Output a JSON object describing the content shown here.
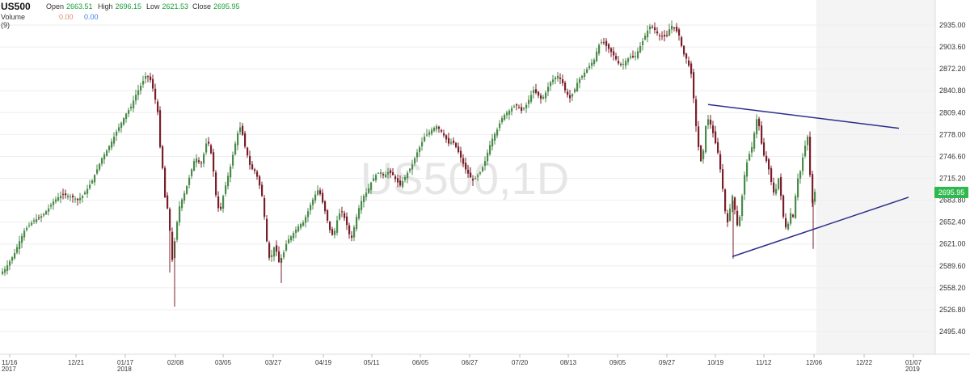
{
  "header": {
    "symbol": "US500",
    "open_label": "Open",
    "open_value": "2663.51",
    "high_label": "High",
    "high_value": "2696.15",
    "low_label": "Low",
    "low_value": "2621.53",
    "close_label": "Close",
    "close_value": "2695.95",
    "volume_label": "Volume (9)",
    "volume_value_1": "0.00",
    "volume_value_2": "0.00"
  },
  "colors": {
    "up": "#4a8a4a",
    "down": "#7a1f2a",
    "trendline": "#2c2e8c",
    "price_badge": "#2fb84e",
    "volume_value_1": "#e08a6a",
    "volume_value_2": "#3d7ee8",
    "future_area": "#f4f4f4",
    "grid": "#eeeeee"
  },
  "watermark": "US500,1D",
  "price_badge": "2695.95",
  "chart_data": {
    "type": "candlestick",
    "title": "US500",
    "timeframe": "1D",
    "x_tick_labels": [
      {
        "label": "11/16",
        "year": "2017"
      },
      {
        "label": "12/21",
        "year": ""
      },
      {
        "label": "01/17",
        "year": "2018"
      },
      {
        "label": "02/08",
        "year": ""
      },
      {
        "label": "03/05",
        "year": ""
      },
      {
        "label": "03/27",
        "year": ""
      },
      {
        "label": "04/19",
        "year": ""
      },
      {
        "label": "05/11",
        "year": ""
      },
      {
        "label": "06/05",
        "year": ""
      },
      {
        "label": "06/27",
        "year": ""
      },
      {
        "label": "07/20",
        "year": ""
      },
      {
        "label": "08/13",
        "year": ""
      },
      {
        "label": "09/05",
        "year": ""
      },
      {
        "label": "09/27",
        "year": ""
      },
      {
        "label": "10/19",
        "year": ""
      },
      {
        "label": "11/12",
        "year": ""
      },
      {
        "label": "12/06",
        "year": ""
      },
      {
        "label": "12/22",
        "year": ""
      },
      {
        "label": "01/07",
        "year": "2019"
      }
    ],
    "y_tick_labels": [
      "2935.00",
      "2903.60",
      "2872.20",
      "2840.80",
      "2809.40",
      "2778.00",
      "2746.60",
      "2715.20",
      "2683.80",
      "2652.40",
      "2621.00",
      "2589.60",
      "2558.20",
      "2526.80",
      "2495.40"
    ],
    "y_range": [
      2470,
      2960
    ],
    "last_close": 2695.95,
    "close_path": [
      [
        0,
        2578
      ],
      [
        6,
        2585
      ],
      [
        12,
        2596
      ],
      [
        18,
        2608
      ],
      [
        24,
        2625
      ],
      [
        30,
        2640
      ],
      [
        36,
        2648
      ],
      [
        42,
        2655
      ],
      [
        48,
        2658
      ],
      [
        54,
        2664
      ],
      [
        60,
        2672
      ],
      [
        66,
        2682
      ],
      [
        72,
        2688
      ],
      [
        78,
        2692
      ],
      [
        84,
        2690
      ],
      [
        90,
        2688
      ],
      [
        96,
        2684
      ],
      [
        102,
        2690
      ],
      [
        108,
        2700
      ],
      [
        114,
        2712
      ],
      [
        120,
        2728
      ],
      [
        126,
        2744
      ],
      [
        132,
        2755
      ],
      [
        138,
        2768
      ],
      [
        144,
        2782
      ],
      [
        150,
        2795
      ],
      [
        156,
        2808
      ],
      [
        162,
        2818
      ],
      [
        168,
        2835
      ],
      [
        174,
        2848
      ],
      [
        180,
        2862
      ],
      [
        185,
        2860
      ],
      [
        190,
        2840
      ],
      [
        195,
        2810
      ],
      [
        198,
        2760
      ],
      [
        201,
        2730
      ],
      [
        204,
        2688
      ],
      [
        207,
        2672
      ],
      [
        210,
        2640
      ],
      [
        212,
        2590
      ],
      [
        215,
        2615
      ],
      [
        218,
        2645
      ],
      [
        222,
        2675
      ],
      [
        226,
        2688
      ],
      [
        230,
        2700
      ],
      [
        235,
        2720
      ],
      [
        240,
        2740
      ],
      [
        244,
        2745
      ],
      [
        248,
        2732
      ],
      [
        252,
        2750
      ],
      [
        256,
        2770
      ],
      [
        260,
        2760
      ],
      [
        264,
        2725
      ],
      [
        268,
        2680
      ],
      [
        272,
        2665
      ],
      [
        276,
        2690
      ],
      [
        280,
        2710
      ],
      [
        285,
        2732
      ],
      [
        290,
        2760
      ],
      [
        295,
        2785
      ],
      [
        298,
        2790
      ],
      [
        302,
        2765
      ],
      [
        306,
        2748
      ],
      [
        310,
        2730
      ],
      [
        316,
        2725
      ],
      [
        320,
        2710
      ],
      [
        324,
        2690
      ],
      [
        328,
        2650
      ],
      [
        332,
        2600
      ],
      [
        336,
        2605
      ],
      [
        340,
        2620
      ],
      [
        345,
        2595
      ],
      [
        350,
        2605
      ],
      [
        355,
        2625
      ],
      [
        360,
        2632
      ],
      [
        365,
        2640
      ],
      [
        370,
        2648
      ],
      [
        375,
        2652
      ],
      [
        380,
        2665
      ],
      [
        385,
        2680
      ],
      [
        390,
        2692
      ],
      [
        394,
        2700
      ],
      [
        398,
        2685
      ],
      [
        402,
        2668
      ],
      [
        406,
        2650
      ],
      [
        410,
        2632
      ],
      [
        414,
        2640
      ],
      [
        418,
        2660
      ],
      [
        422,
        2670
      ],
      [
        426,
        2658
      ],
      [
        430,
        2645
      ],
      [
        434,
        2625
      ],
      [
        438,
        2645
      ],
      [
        442,
        2665
      ],
      [
        446,
        2680
      ],
      [
        450,
        2690
      ],
      [
        455,
        2698
      ],
      [
        460,
        2712
      ],
      [
        465,
        2720
      ],
      [
        470,
        2725
      ],
      [
        475,
        2718
      ],
      [
        480,
        2724
      ],
      [
        485,
        2722
      ],
      [
        490,
        2712
      ],
      [
        495,
        2705
      ],
      [
        500,
        2715
      ],
      [
        505,
        2725
      ],
      [
        510,
        2735
      ],
      [
        515,
        2750
      ],
      [
        520,
        2762
      ],
      [
        525,
        2775
      ],
      [
        530,
        2780
      ],
      [
        535,
        2786
      ],
      [
        540,
        2790
      ],
      [
        545,
        2784
      ],
      [
        550,
        2775
      ],
      [
        555,
        2765
      ],
      [
        560,
        2768
      ],
      [
        565,
        2758
      ],
      [
        570,
        2745
      ],
      [
        575,
        2730
      ],
      [
        580,
        2720
      ],
      [
        585,
        2712
      ],
      [
        590,
        2718
      ],
      [
        595,
        2725
      ],
      [
        600,
        2740
      ],
      [
        605,
        2760
      ],
      [
        610,
        2775
      ],
      [
        615,
        2785
      ],
      [
        620,
        2800
      ],
      [
        625,
        2808
      ],
      [
        630,
        2812
      ],
      [
        635,
        2818
      ],
      [
        640,
        2820
      ],
      [
        645,
        2812
      ],
      [
        650,
        2818
      ],
      [
        655,
        2830
      ],
      [
        660,
        2842
      ],
      [
        665,
        2835
      ],
      [
        670,
        2828
      ],
      [
        675,
        2838
      ],
      [
        680,
        2852
      ],
      [
        685,
        2858
      ],
      [
        690,
        2862
      ],
      [
        695,
        2855
      ],
      [
        700,
        2838
      ],
      [
        705,
        2830
      ],
      [
        710,
        2840
      ],
      [
        715,
        2855
      ],
      [
        720,
        2862
      ],
      [
        725,
        2870
      ],
      [
        730,
        2878
      ],
      [
        735,
        2885
      ],
      [
        740,
        2905
      ],
      [
        745,
        2912
      ],
      [
        750,
        2905
      ],
      [
        755,
        2898
      ],
      [
        760,
        2890
      ],
      [
        765,
        2880
      ],
      [
        770,
        2878
      ],
      [
        775,
        2885
      ],
      [
        780,
        2890
      ],
      [
        785,
        2888
      ],
      [
        790,
        2900
      ],
      [
        795,
        2912
      ],
      [
        800,
        2925
      ],
      [
        805,
        2935
      ],
      [
        810,
        2928
      ],
      [
        815,
        2920
      ],
      [
        820,
        2918
      ],
      [
        825,
        2920
      ],
      [
        830,
        2935
      ],
      [
        835,
        2930
      ],
      [
        840,
        2920
      ],
      [
        845,
        2895
      ],
      [
        850,
        2885
      ],
      [
        855,
        2865
      ],
      [
        858,
        2830
      ],
      [
        861,
        2790
      ],
      [
        864,
        2760
      ],
      [
        867,
        2740
      ],
      [
        870,
        2755
      ],
      [
        873,
        2790
      ],
      [
        876,
        2800
      ],
      [
        880,
        2790
      ],
      [
        884,
        2770
      ],
      [
        888,
        2752
      ],
      [
        891,
        2728
      ],
      [
        894,
        2700
      ],
      [
        897,
        2668
      ],
      [
        900,
        2652
      ],
      [
        903,
        2672
      ],
      [
        906,
        2690
      ],
      [
        909,
        2670
      ],
      [
        912,
        2648
      ],
      [
        915,
        2660
      ],
      [
        918,
        2690
      ],
      [
        921,
        2720
      ],
      [
        924,
        2738
      ],
      [
        927,
        2750
      ],
      [
        930,
        2760
      ],
      [
        933,
        2780
      ],
      [
        936,
        2800
      ],
      [
        939,
        2790
      ],
      [
        942,
        2765
      ],
      [
        945,
        2748
      ],
      [
        948,
        2740
      ],
      [
        951,
        2728
      ],
      [
        954,
        2710
      ],
      [
        957,
        2695
      ],
      [
        960,
        2700
      ],
      [
        963,
        2715
      ],
      [
        966,
        2690
      ],
      [
        969,
        2660
      ],
      [
        972,
        2645
      ],
      [
        975,
        2650
      ],
      [
        978,
        2665
      ],
      [
        981,
        2660
      ],
      [
        984,
        2690
      ],
      [
        987,
        2715
      ],
      [
        990,
        2725
      ],
      [
        993,
        2745
      ],
      [
        996,
        2762
      ],
      [
        999,
        2775
      ],
      [
        1002,
        2720
      ],
      [
        1005,
        2680
      ],
      [
        1008,
        2695.95
      ]
    ],
    "wick_extremes": [
      {
        "x": 216,
        "low": 2531
      },
      {
        "x": 210,
        "low": 2580
      },
      {
        "x": 348,
        "low": 2565
      },
      {
        "x": 907,
        "low": 2600
      },
      {
        "x": 1006,
        "low": 2614
      }
    ],
    "trendlines": [
      {
        "name": "upper",
        "x1": 876,
        "y1": 2821,
        "x2": 1112,
        "y2": 2787
      },
      {
        "name": "lower",
        "x1": 906,
        "y1": 2603,
        "x2": 1124,
        "y2": 2688
      }
    ]
  }
}
